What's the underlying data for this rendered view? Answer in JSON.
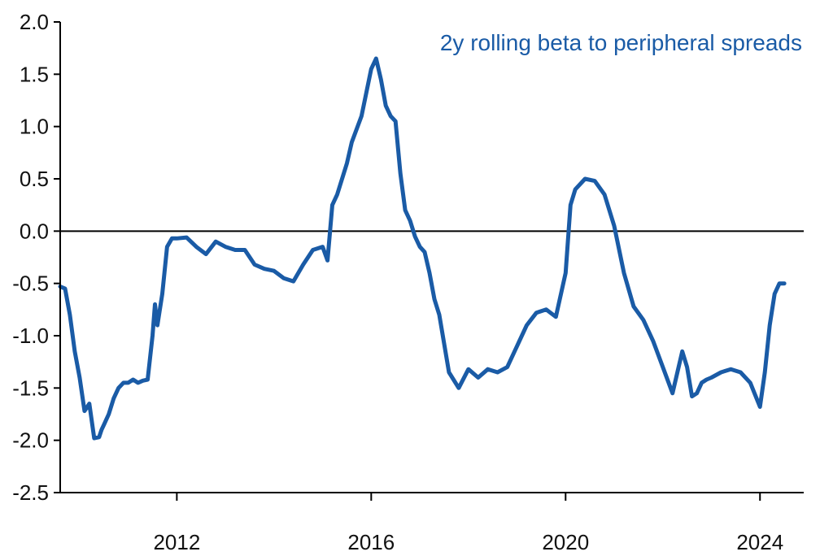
{
  "chart_data": {
    "type": "line",
    "title": "",
    "xlabel": "",
    "ylabel": "",
    "xlim": [
      2009.6,
      2024.9
    ],
    "ylim": [
      -2.5,
      2.0
    ],
    "y_ticks": [
      "2.0",
      "1.5",
      "1.0",
      "0.5",
      "0.0",
      "-0.5",
      "-1.0",
      "-1.5",
      "-2.0",
      "-2.5"
    ],
    "x_ticks": [
      "2012",
      "2016",
      "2020",
      "2024"
    ],
    "zero_line": true,
    "grid": false,
    "colors": {
      "series": "#1a5ba6",
      "axis": "#000000"
    },
    "series": [
      {
        "name": "2y rolling beta to peripheral spreads",
        "x": [
          2009.6,
          2009.7,
          2009.8,
          2009.9,
          2010.0,
          2010.1,
          2010.2,
          2010.3,
          2010.4,
          2010.45,
          2010.5,
          2010.6,
          2010.7,
          2010.8,
          2010.9,
          2011.0,
          2011.1,
          2011.2,
          2011.3,
          2011.4,
          2011.5,
          2011.55,
          2011.6,
          2011.65,
          2011.7,
          2011.8,
          2011.9,
          2012.0,
          2012.2,
          2012.4,
          2012.6,
          2012.8,
          2013.0,
          2013.2,
          2013.4,
          2013.6,
          2013.8,
          2014.0,
          2014.2,
          2014.4,
          2014.6,
          2014.8,
          2015.0,
          2015.1,
          2015.2,
          2015.3,
          2015.4,
          2015.5,
          2015.6,
          2015.8,
          2016.0,
          2016.1,
          2016.2,
          2016.3,
          2016.4,
          2016.5,
          2016.6,
          2016.7,
          2016.8,
          2016.9,
          2017.0,
          2017.1,
          2017.2,
          2017.3,
          2017.4,
          2017.6,
          2017.8,
          2018.0,
          2018.2,
          2018.4,
          2018.6,
          2018.8,
          2019.0,
          2019.2,
          2019.4,
          2019.6,
          2019.8,
          2020.0,
          2020.1,
          2020.2,
          2020.4,
          2020.6,
          2020.8,
          2021.0,
          2021.2,
          2021.4,
          2021.6,
          2021.8,
          2022.0,
          2022.2,
          2022.3,
          2022.4,
          2022.5,
          2022.6,
          2022.7,
          2022.8,
          2022.9,
          2023.0,
          2023.2,
          2023.4,
          2023.6,
          2023.8,
          2024.0,
          2024.1,
          2024.2,
          2024.3,
          2024.4,
          2024.5
        ],
        "values": [
          -0.53,
          -0.55,
          -0.8,
          -1.15,
          -1.4,
          -1.72,
          -1.65,
          -1.98,
          -1.97,
          -1.9,
          -1.85,
          -1.75,
          -1.6,
          -1.5,
          -1.45,
          -1.45,
          -1.42,
          -1.45,
          -1.43,
          -1.42,
          -1.0,
          -0.7,
          -0.9,
          -0.75,
          -0.6,
          -0.15,
          -0.07,
          -0.07,
          -0.06,
          -0.15,
          -0.22,
          -0.1,
          -0.15,
          -0.18,
          -0.18,
          -0.32,
          -0.36,
          -0.38,
          -0.45,
          -0.48,
          -0.32,
          -0.18,
          -0.15,
          -0.28,
          0.25,
          0.35,
          0.5,
          0.65,
          0.85,
          1.1,
          1.55,
          1.65,
          1.45,
          1.2,
          1.1,
          1.05,
          0.55,
          0.2,
          0.1,
          -0.05,
          -0.15,
          -0.2,
          -0.4,
          -0.65,
          -0.8,
          -1.35,
          -1.5,
          -1.32,
          -1.4,
          -1.32,
          -1.35,
          -1.3,
          -1.1,
          -0.9,
          -0.78,
          -0.75,
          -0.82,
          -0.4,
          0.25,
          0.4,
          0.5,
          0.48,
          0.35,
          0.05,
          -0.4,
          -0.72,
          -0.85,
          -1.05,
          -1.3,
          -1.55,
          -1.35,
          -1.15,
          -1.3,
          -1.58,
          -1.55,
          -1.45,
          -1.42,
          -1.4,
          -1.35,
          -1.32,
          -1.35,
          -1.45,
          -1.68,
          -1.35,
          -0.9,
          -0.6,
          -0.5,
          -0.5
        ]
      }
    ]
  }
}
